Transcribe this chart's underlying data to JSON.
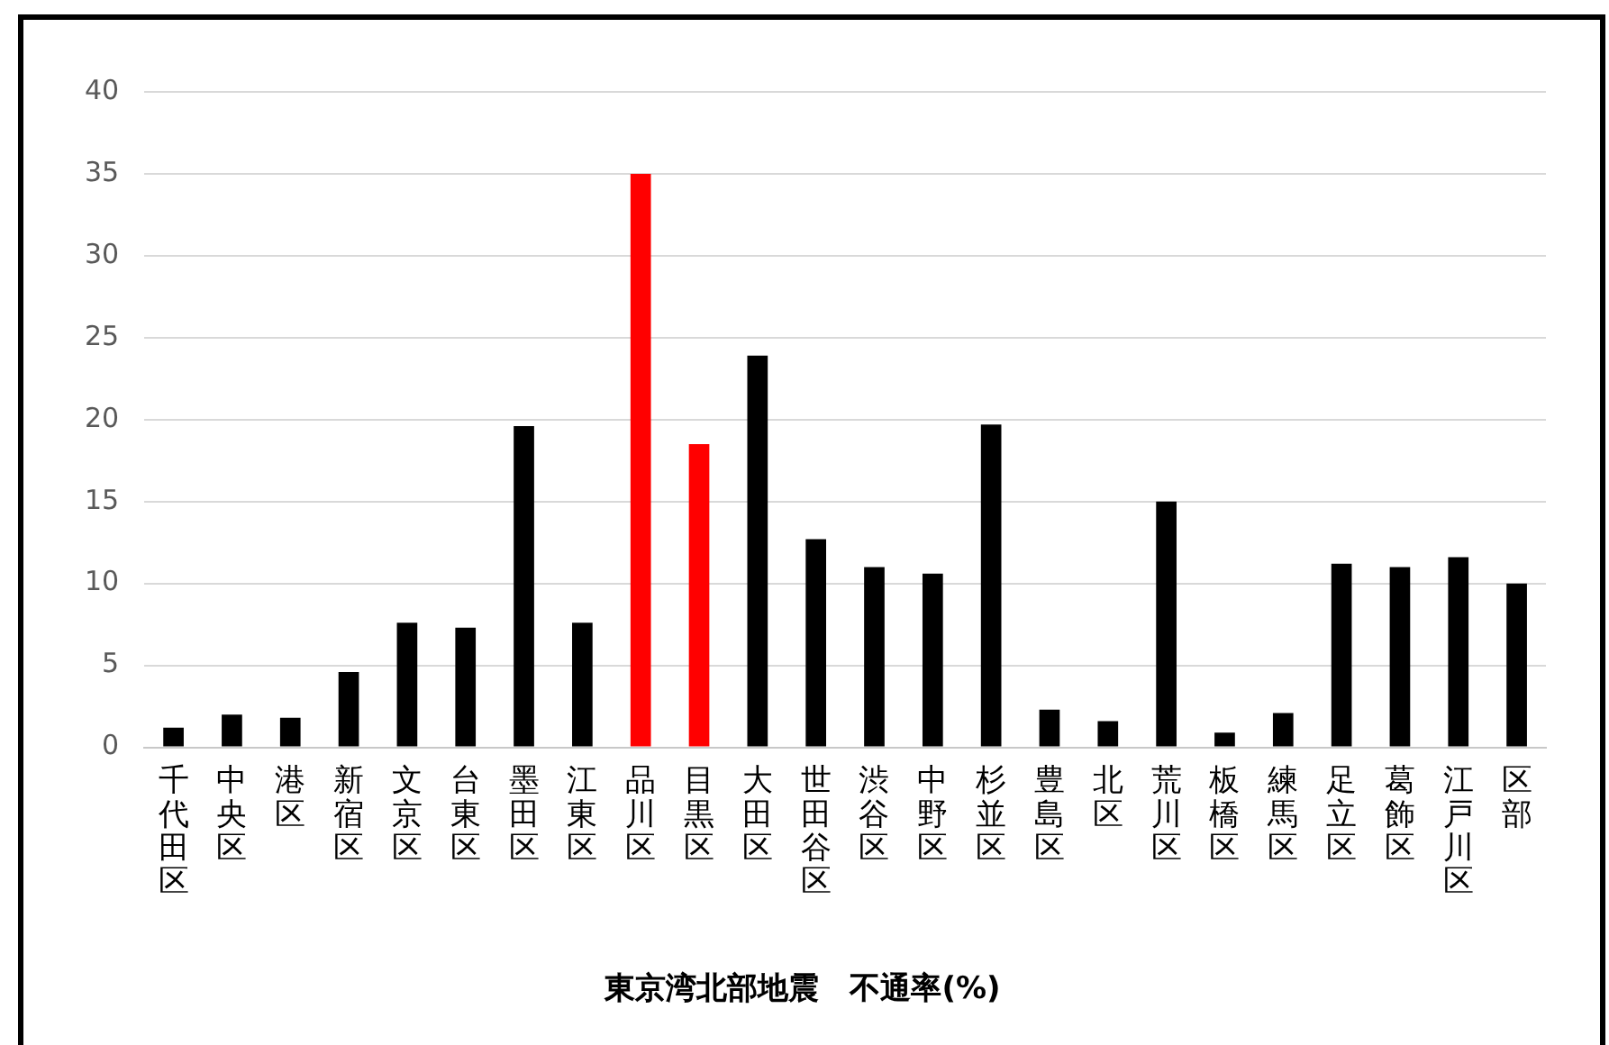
{
  "chart_data": {
    "type": "bar",
    "title": "東京湾北部地震　不通率(%)",
    "categories": [
      "千代田区",
      "中央区",
      "港区",
      "新宿区",
      "文京区",
      "台東区",
      "墨田区",
      "江東区",
      "品川区",
      "目黒区",
      "大田区",
      "世田谷区",
      "渋谷区",
      "中野区",
      "杉並区",
      "豊島区",
      "北区",
      "荒川区",
      "板橋区",
      "練馬区",
      "足立区",
      "葛飾区",
      "江戸川区",
      "区部"
    ],
    "values": [
      1.2,
      2.0,
      1.8,
      4.6,
      7.6,
      7.3,
      19.6,
      7.6,
      35,
      18.5,
      23.9,
      12.7,
      11.0,
      10.6,
      19.7,
      2.3,
      1.6,
      15.0,
      0.9,
      2.1,
      11.2,
      11.0,
      11.6,
      10.0
    ],
    "colors": [
      "#000000",
      "#000000",
      "#000000",
      "#000000",
      "#000000",
      "#000000",
      "#000000",
      "#000000",
      "#ff0000",
      "#ff0000",
      "#000000",
      "#000000",
      "#000000",
      "#000000",
      "#000000",
      "#000000",
      "#000000",
      "#000000",
      "#000000",
      "#000000",
      "#000000",
      "#000000",
      "#000000",
      "#000000"
    ],
    "ylim": [
      0,
      40
    ],
    "yticks": [
      0,
      5,
      10,
      15,
      20,
      25,
      30,
      35,
      40
    ],
    "grid": "y",
    "legend": false
  }
}
